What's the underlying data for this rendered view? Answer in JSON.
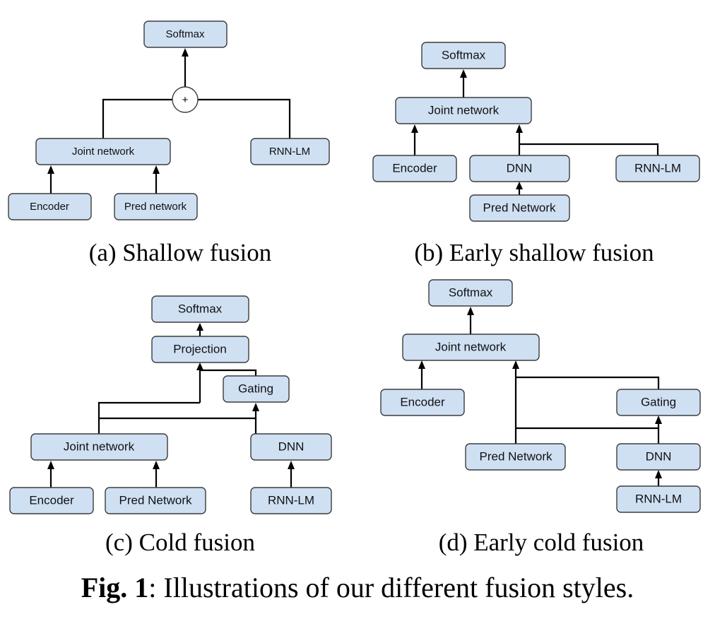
{
  "panel_a": {
    "caption": "(a) Shallow fusion",
    "softmax": "Softmax",
    "plus": "+",
    "joint": "Joint network",
    "rnnlm": "RNN-LM",
    "encoder": "Encoder",
    "pred": "Pred network"
  },
  "panel_b": {
    "caption": "(b) Early shallow fusion",
    "softmax": "Softmax",
    "joint": "Joint network",
    "encoder": "Encoder",
    "dnn": "DNN",
    "rnnlm": "RNN-LM",
    "pred": "Pred Network"
  },
  "panel_c": {
    "caption": "(c) Cold fusion",
    "softmax": "Softmax",
    "projection": "Projection",
    "gating": "Gating",
    "joint": "Joint network",
    "dnn": "DNN",
    "encoder": "Encoder",
    "pred": "Pred Network",
    "rnnlm": "RNN-LM"
  },
  "panel_d": {
    "caption": "(d) Early cold fusion",
    "softmax": "Softmax",
    "joint": "Joint network",
    "encoder": "Encoder",
    "gating": "Gating",
    "pred": "Pred Network",
    "dnn": "DNN",
    "rnnlm": "RNN-LM"
  },
  "figure_caption": {
    "label": "Fig. 1",
    "text": ": Illustrations of our different fusion styles."
  }
}
